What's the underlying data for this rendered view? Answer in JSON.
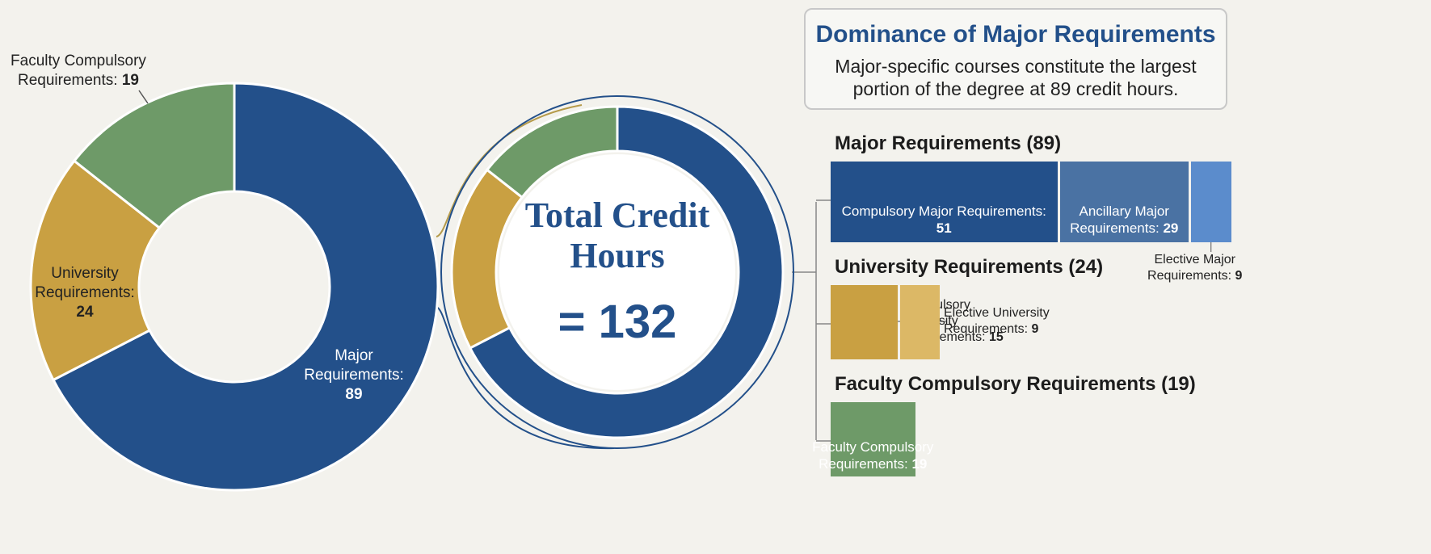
{
  "chart_data": [
    {
      "type": "donut",
      "categories": [
        "Major Requirements:",
        "University Requirements:",
        "Faculty Compulsory Requirements:"
      ],
      "values": [
        89,
        24,
        19
      ],
      "colors": [
        "#23508a",
        "#c9a042",
        "#6e9a68"
      ]
    },
    {
      "type": "donut",
      "title": "Total Credit Hours",
      "total": {
        "value": 132,
        "label": "= 132"
      },
      "values": [
        89,
        24,
        19
      ],
      "colors": [
        "#23508a",
        "#c9a042",
        "#6e9a68"
      ]
    }
  ],
  "panel": {
    "title": "Dominance of Major Requirements",
    "text": "Major-specific courses constitute the largest portion of the degree at 89 credit hours.",
    "groups": [
      {
        "heading": {
          "value": 89,
          "label": "Major Requirements (89)"
        },
        "items": [
          {
            "name": "Compulsory Major Requirements:",
            "value": 51,
            "color": "#23508a"
          },
          {
            "name": "Ancillary Major Requirements:",
            "value": 29,
            "color": "#4a72a3"
          },
          {
            "name": "Elective Major Requirements:",
            "value": 9,
            "color": "#5b8ccc"
          }
        ]
      },
      {
        "heading": {
          "value": 24,
          "label": "University Requirements (24)"
        },
        "items": [
          {
            "name": "Compulsory University Requirements:",
            "value": 15,
            "color": "#c9a042"
          },
          {
            "name": "Elective University Requirements:",
            "value": 9,
            "color": "#dcb866"
          }
        ]
      },
      {
        "heading": {
          "value": 19,
          "label": "Faculty Compulsory Requirements (19)"
        },
        "items": [
          {
            "name": "Faculty Compulsory Requirements:",
            "value": 19,
            "color": "#6e9a68"
          }
        ]
      }
    ]
  }
}
